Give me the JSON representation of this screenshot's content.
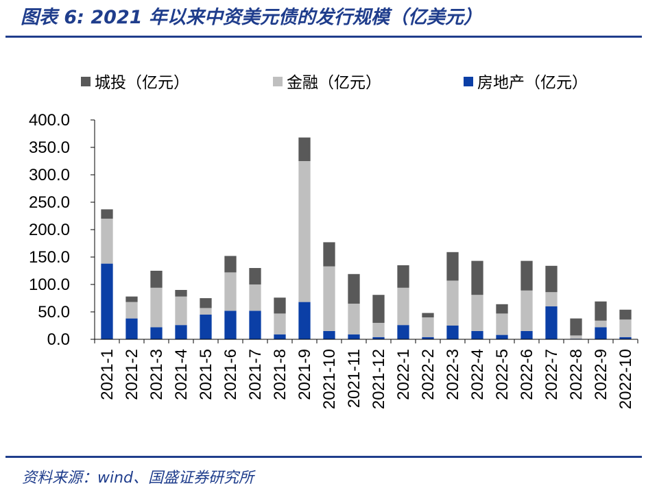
{
  "header": {
    "title": "图表 6:  2021 年以来中资美元债的发行规模（亿美元）"
  },
  "footer": {
    "source": "资料来源：wind、国盛证券研究所"
  },
  "chart_data": {
    "type": "bar",
    "stacked": true,
    "categories": [
      "2021-1",
      "2021-2",
      "2021-3",
      "2021-4",
      "2021-5",
      "2021-6",
      "2021-7",
      "2021-8",
      "2021-9",
      "2021-10",
      "2021-11",
      "2021-12",
      "2022-1",
      "2022-2",
      "2022-3",
      "2022-4",
      "2022-5",
      "2022-6",
      "2022-7",
      "2022-8",
      "2022-9",
      "2022-10"
    ],
    "series": [
      {
        "name": "房地产（亿元）",
        "color": "#0b3fa6",
        "values": [
          138,
          38,
          22,
          26,
          45,
          52,
          52,
          9,
          68,
          15,
          9,
          4,
          26,
          4,
          25,
          15,
          8,
          15,
          60,
          1,
          22,
          4
        ]
      },
      {
        "name": "金融（亿元）",
        "color": "#bfbfbf",
        "values": [
          82,
          30,
          72,
          52,
          12,
          70,
          48,
          38,
          257,
          118,
          56,
          26,
          68,
          36,
          82,
          66,
          39,
          74,
          26,
          6,
          12,
          32
        ]
      },
      {
        "name": "城投（亿元）",
        "color": "#595959",
        "values": [
          17,
          10,
          31,
          12,
          18,
          30,
          30,
          29,
          43,
          44,
          54,
          51,
          41,
          8,
          52,
          62,
          17,
          54,
          48,
          31,
          35,
          18
        ]
      }
    ],
    "legend_order": [
      2,
      1,
      0
    ],
    "legend_position": "top",
    "ylim": [
      0,
      400
    ],
    "yticks": [
      "0.0",
      "50.0",
      "100.0",
      "150.0",
      "200.0",
      "250.0",
      "300.0",
      "350.0",
      "400.0"
    ],
    "xlabel": "",
    "ylabel": "",
    "grid": false
  }
}
